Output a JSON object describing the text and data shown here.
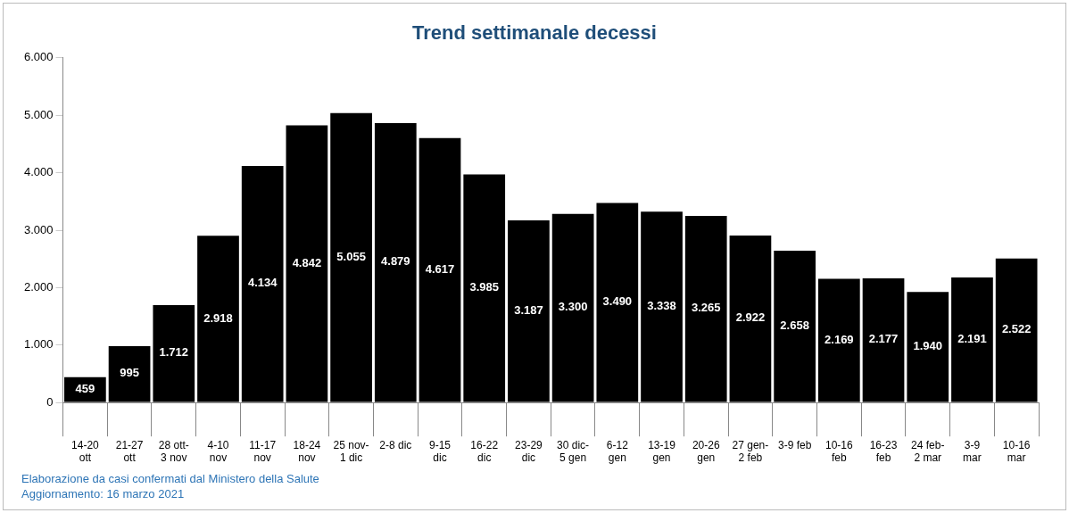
{
  "chart_data": {
    "type": "bar",
    "title": "Trend settimanale decessi",
    "categories": [
      "14-20\nott",
      "21-27\nott",
      "28 ott-\n3 nov",
      "4-10\nnov",
      "11-17\nnov",
      "18-24\nnov",
      "25 nov-\n1 dic",
      "2-8 dic",
      "9-15\ndic",
      "16-22\ndic",
      "23-29\ndic",
      "30 dic-\n5 gen",
      "6-12\ngen",
      "13-19\ngen",
      "20-26\ngen",
      "27 gen-\n2 feb",
      "3-9 feb",
      "10-16\nfeb",
      "16-23\nfeb",
      "24 feb-\n2 mar",
      "3-9\nmar",
      "10-16\nmar"
    ],
    "values": [
      459,
      995,
      1712,
      2918,
      4134,
      4842,
      5055,
      4879,
      4617,
      3985,
      3187,
      3300,
      3490,
      3338,
      3265,
      2922,
      2658,
      2169,
      2177,
      1940,
      2191,
      2522
    ],
    "value_labels": [
      "459",
      "995",
      "1.712",
      "2.918",
      "4.134",
      "4.842",
      "5.055",
      "4.879",
      "4.617",
      "3.985",
      "3.187",
      "3.300",
      "3.490",
      "3.338",
      "3.265",
      "2.922",
      "2.658",
      "2.169",
      "2.177",
      "1.940",
      "2.191",
      "2.522"
    ],
    "color": "#000000",
    "ylim": [
      0,
      6000
    ],
    "yticks": [
      0,
      {
        "value": 1000,
        "label": "1.000"
      },
      {
        "value": 2000,
        "label": "2.000"
      },
      {
        "value": 3000,
        "label": "3.000"
      },
      {
        "value": 4000,
        "label": "4.000"
      },
      {
        "value": 5000,
        "label": "5.000"
      },
      {
        "value": 6000,
        "label": "6.000"
      }
    ],
    "grid": false,
    "legend": false,
    "annotations": [
      "Elaborazione da casi confermati dal Ministero della Salute",
      "Aggiornamento: 16 marzo 2021"
    ]
  }
}
